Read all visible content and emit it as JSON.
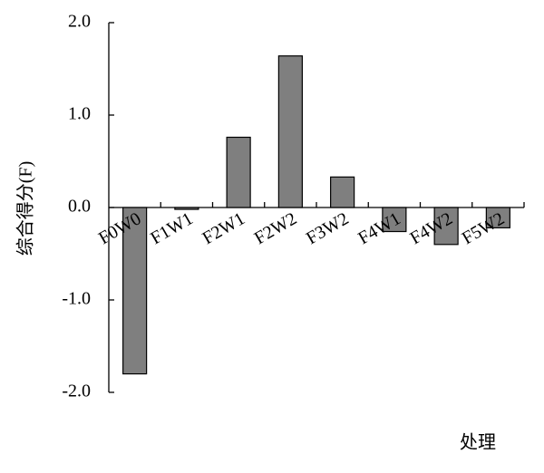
{
  "chart_data": {
    "type": "bar",
    "y_label": "综合得分(F)",
    "x_label": "处理",
    "categories": [
      "F0W0",
      "F1W1",
      "F2W1",
      "F2W2",
      "F3W2",
      "F4W1",
      "F4W2",
      "F5W2"
    ],
    "values": [
      -1.8,
      -0.02,
      0.76,
      1.64,
      0.33,
      -0.26,
      -0.4,
      -0.22
    ],
    "color": "#7f7f7f",
    "ylim": [
      -2,
      2
    ],
    "yticks": [
      {
        "value": -2,
        "label": "-2.0"
      },
      {
        "value": -1,
        "label": "-1.0"
      },
      {
        "value": 0,
        "label": "0.0"
      },
      {
        "value": 1,
        "label": "1.0"
      },
      {
        "value": 2,
        "label": "2.0"
      }
    ],
    "grid": false
  }
}
